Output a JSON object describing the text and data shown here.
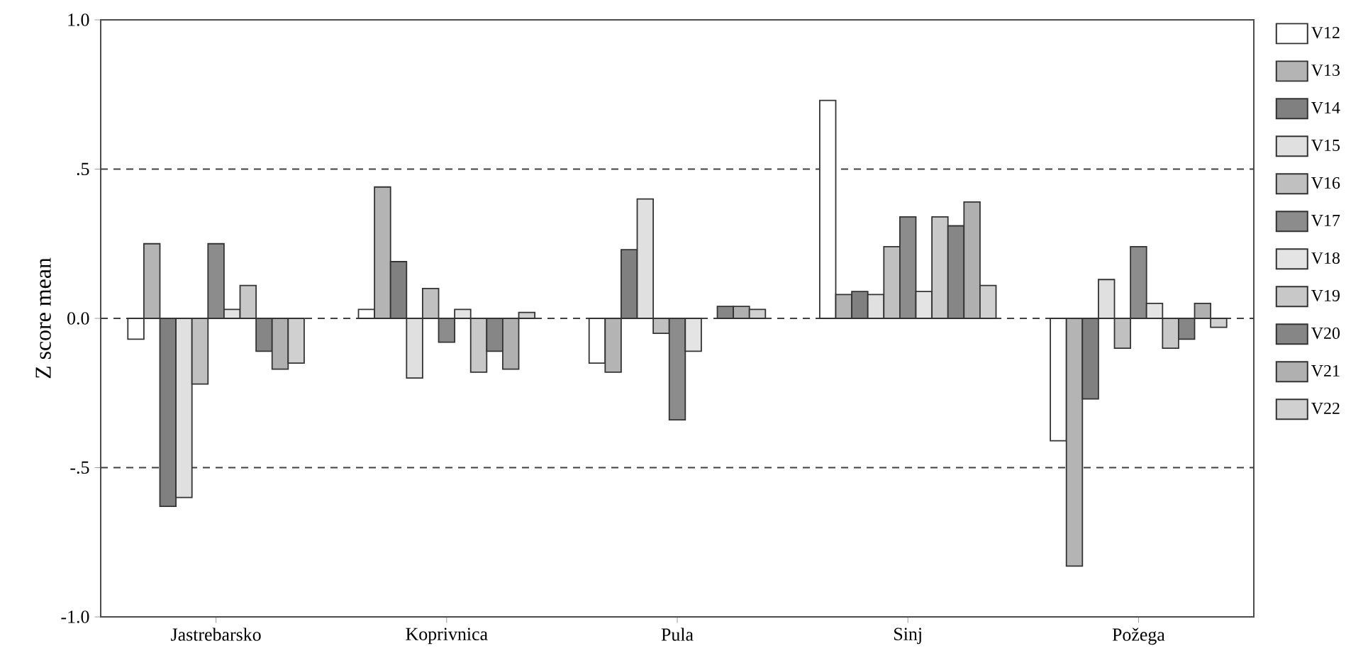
{
  "chart_data": {
    "type": "bar",
    "ylabel": "Z score mean",
    "categories": [
      "Jastrebarsko",
      "Koprivnica",
      "Pula",
      "Sinj",
      "Požega"
    ],
    "ylim": [
      -1.0,
      1.0
    ],
    "yticks": [
      {
        "value": -1.0,
        "label": "-1.0"
      },
      {
        "value": -0.5,
        "label": "-.5"
      },
      {
        "value": 0.0,
        "label": "0.0"
      },
      {
        "value": 0.5,
        "label": ".5"
      },
      {
        "value": 1.0,
        "label": "1.0"
      }
    ],
    "ref_lines": [
      {
        "axis": "y",
        "value": 0.5,
        "line_style": "dashed"
      },
      {
        "axis": "y",
        "value": 0.0,
        "line_style": "dashed"
      },
      {
        "axis": "y",
        "value": -0.5,
        "line_style": "dashed"
      }
    ],
    "legend": "right",
    "grid": false,
    "series": [
      {
        "name": "V12",
        "color": "#ffffff",
        "values": [
          -0.07,
          0.03,
          -0.15,
          0.73,
          -0.41
        ]
      },
      {
        "name": "V13",
        "color": "#b4b4b4",
        "values": [
          0.25,
          0.44,
          -0.18,
          0.08,
          -0.83
        ]
      },
      {
        "name": "V14",
        "color": "#808080",
        "values": [
          -0.63,
          0.19,
          0.23,
          0.09,
          -0.27
        ]
      },
      {
        "name": "V15",
        "color": "#e0e0e0",
        "values": [
          -0.6,
          -0.2,
          0.4,
          0.08,
          0.13
        ]
      },
      {
        "name": "V16",
        "color": "#c0c0c0",
        "values": [
          -0.22,
          0.1,
          -0.05,
          0.24,
          -0.1
        ]
      },
      {
        "name": "V17",
        "color": "#8c8c8c",
        "values": [
          0.25,
          -0.08,
          -0.34,
          0.34,
          0.24
        ]
      },
      {
        "name": "V18",
        "color": "#e4e4e4",
        "values": [
          0.03,
          0.03,
          -0.11,
          0.09,
          0.05
        ]
      },
      {
        "name": "V19",
        "color": "#c8c8c8",
        "values": [
          0.11,
          -0.18,
          null,
          0.34,
          -0.1
        ]
      },
      {
        "name": "V20",
        "color": "#868686",
        "values": [
          -0.11,
          -0.11,
          0.04,
          0.31,
          -0.07
        ]
      },
      {
        "name": "V21",
        "color": "#b0b0b0",
        "values": [
          -0.17,
          -0.17,
          0.04,
          0.39,
          0.05
        ]
      },
      {
        "name": "V22",
        "color": "#d0d0d0",
        "values": [
          -0.15,
          0.02,
          0.03,
          0.11,
          -0.03
        ]
      }
    ]
  }
}
